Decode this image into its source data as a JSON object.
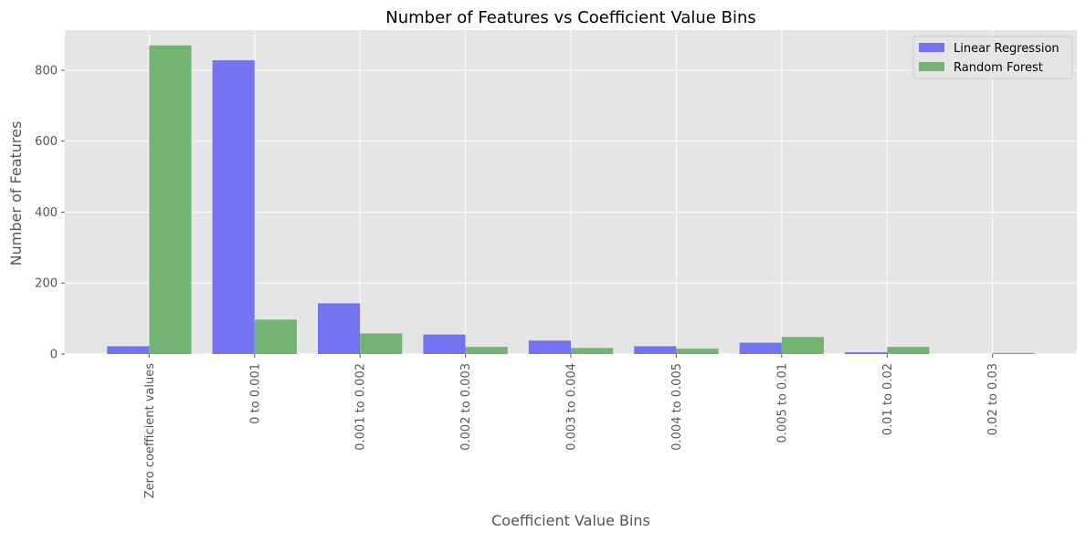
{
  "chart_data": {
    "type": "bar",
    "title": "Number of Features vs Coefficient Value Bins",
    "xlabel": "Coefficient Value Bins",
    "ylabel": "Number of Features",
    "categories": [
      "Zero coefficient values",
      "0 to 0.001",
      "0.001 to 0.002",
      "0.002 to 0.003",
      "0.003 to 0.004",
      "0.004 to 0.005",
      "0.005 to 0.01",
      "0.01 to 0.02",
      "0.02 to 0.03"
    ],
    "series": [
      {
        "name": "Linear Regression",
        "color": "#7474f2",
        "values": [
          22,
          828,
          143,
          55,
          38,
          22,
          32,
          5,
          0
        ]
      },
      {
        "name": "Random Forest",
        "color": "#73b373",
        "values": [
          870,
          97,
          58,
          20,
          17,
          15,
          48,
          20,
          3
        ]
      }
    ],
    "ylim": [
      0,
      913
    ],
    "yticks": [
      0,
      200,
      400,
      600,
      800
    ],
    "grid": true,
    "legend_position": "top-right",
    "background": "#e5e5e5"
  }
}
